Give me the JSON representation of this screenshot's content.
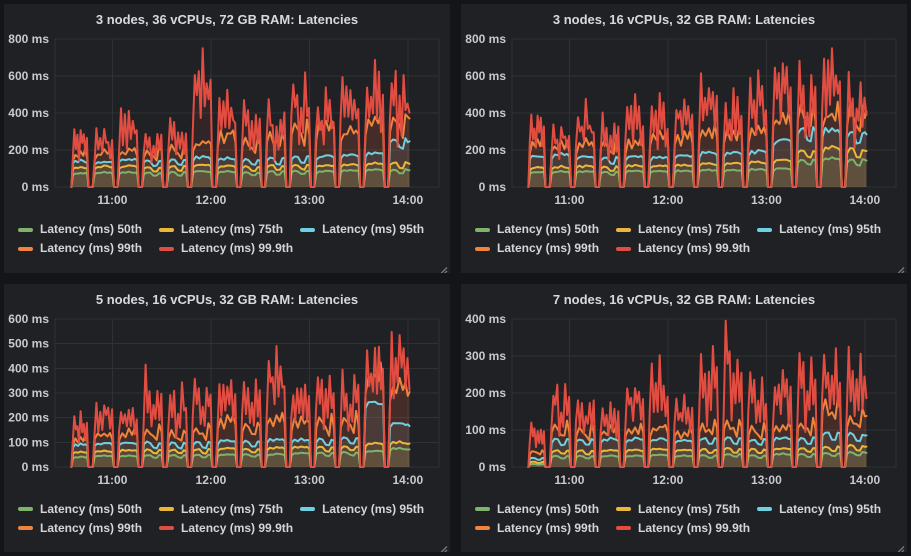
{
  "dashboard": {
    "name": "grafana-latency-dashboard"
  },
  "series_palette": [
    "#7eb26d",
    "#eab839",
    "#6ed0e0",
    "#ef843c",
    "#e24d42"
  ],
  "chart_data": [
    {
      "type": "line",
      "title": "3 nodes, 36 vCPUs, 72 GB RAM: Latencies",
      "ylabel": "",
      "xlabel": "",
      "y_unit": "ms",
      "ylim": [
        0,
        800
      ],
      "y_tick_values": [
        0,
        200,
        400,
        600,
        800
      ],
      "y_tick_labels": [
        "0 ms",
        "200 ms",
        "400 ms",
        "600 ms",
        "800 ms"
      ],
      "x_ticks": [
        "11:00",
        "12:00",
        "13:00",
        "14:00"
      ],
      "x_range": [
        "10:25",
        "14:19"
      ],
      "burst_duration_min": 13,
      "burst_starts": [
        "10:33",
        "10:48",
        "11:03",
        "11:18",
        "11:33",
        "11:48",
        "12:03",
        "12:18",
        "12:33",
        "12:48",
        "13:03",
        "13:18",
        "13:33",
        "13:48"
      ],
      "series": [
        {
          "name": "Latency (ms) 50th",
          "color": "#7eb26d",
          "values": [
            75,
            78,
            80,
            78,
            80,
            85,
            82,
            80,
            85,
            88,
            85,
            88,
            92,
            95
          ]
        },
        {
          "name": "Latency (ms) 75th",
          "color": "#eab839",
          "values": [
            105,
            110,
            112,
            108,
            112,
            118,
            115,
            112,
            118,
            122,
            118,
            122,
            128,
            132
          ]
        },
        {
          "name": "Latency (ms) 95th",
          "color": "#6ed0e0",
          "values": [
            140,
            135,
            150,
            145,
            150,
            160,
            155,
            150,
            160,
            170,
            165,
            170,
            185,
            260
          ]
        },
        {
          "name": "Latency (ms) 99th",
          "color": "#ef843c",
          "values": [
            185,
            190,
            205,
            200,
            215,
            240,
            290,
            250,
            285,
            335,
            340,
            300,
            350,
            390
          ]
        },
        {
          "name": "Latency (ms) 99.9th",
          "color": "#e24d42",
          "values": [
            310,
            300,
            430,
            335,
            380,
            680,
            520,
            485,
            450,
            630,
            490,
            590,
            640,
            670
          ]
        }
      ]
    },
    {
      "type": "line",
      "title": "3 nodes, 16 vCPUs, 32 GB RAM: Latencies",
      "ylabel": "",
      "xlabel": "",
      "y_unit": "ms",
      "ylim": [
        0,
        800
      ],
      "y_tick_values": [
        0,
        200,
        400,
        600,
        800
      ],
      "y_tick_labels": [
        "0 ms",
        "200 ms",
        "400 ms",
        "600 ms",
        "800 ms"
      ],
      "x_ticks": [
        "11:00",
        "12:00",
        "13:00",
        "14:00"
      ],
      "x_range": [
        "10:25",
        "14:19"
      ],
      "burst_duration_min": 13,
      "burst_starts": [
        "10:33",
        "10:48",
        "11:03",
        "11:18",
        "11:33",
        "11:48",
        "12:03",
        "12:18",
        "12:33",
        "12:48",
        "13:03",
        "13:18",
        "13:33",
        "13:48"
      ],
      "series": [
        {
          "name": "Latency (ms) 50th",
          "color": "#7eb26d",
          "values": [
            80,
            82,
            84,
            82,
            86,
            86,
            88,
            90,
            92,
            95,
            100,
            150,
            155,
            150
          ]
        },
        {
          "name": "Latency (ms) 75th",
          "color": "#eab839",
          "values": [
            105,
            108,
            112,
            110,
            115,
            115,
            118,
            125,
            128,
            135,
            145,
            200,
            210,
            205
          ]
        },
        {
          "name": "Latency (ms) 95th",
          "color": "#6ed0e0",
          "values": [
            165,
            175,
            165,
            160,
            165,
            160,
            170,
            185,
            185,
            190,
            250,
            320,
            310,
            300
          ]
        },
        {
          "name": "Latency (ms) 99th",
          "color": "#ef843c",
          "values": [
            230,
            230,
            240,
            240,
            245,
            270,
            275,
            300,
            290,
            295,
            380,
            430,
            400,
            430
          ]
        },
        {
          "name": "Latency (ms) 99.9th",
          "color": "#e24d42",
          "values": [
            390,
            350,
            430,
            400,
            470,
            460,
            500,
            600,
            490,
            580,
            660,
            640,
            750,
            650
          ]
        }
      ]
    },
    {
      "type": "line",
      "title": "5 nodes, 16 vCPUs, 32 GB RAM: Latencies",
      "ylabel": "",
      "xlabel": "",
      "y_unit": "ms",
      "ylim": [
        0,
        600
      ],
      "y_tick_values": [
        0,
        100,
        200,
        300,
        400,
        500,
        600
      ],
      "y_tick_labels": [
        "0 ms",
        "100 ms",
        "200 ms",
        "300 ms",
        "400 ms",
        "500 ms",
        "600 ms"
      ],
      "x_ticks": [
        "11:00",
        "12:00",
        "13:00",
        "14:00"
      ],
      "x_range": [
        "10:25",
        "14:19"
      ],
      "burst_duration_min": 13,
      "burst_starts": [
        "10:33",
        "10:48",
        "11:03",
        "11:18",
        "11:33",
        "11:48",
        "12:03",
        "12:18",
        "12:33",
        "12:48",
        "13:03",
        "13:18",
        "13:33",
        "13:48"
      ],
      "series": [
        {
          "name": "Latency (ms) 50th",
          "color": "#7eb26d",
          "values": [
            40,
            45,
            45,
            48,
            48,
            50,
            50,
            52,
            52,
            55,
            58,
            60,
            65,
            75
          ]
        },
        {
          "name": "Latency (ms) 75th",
          "color": "#eab839",
          "values": [
            60,
            65,
            68,
            70,
            70,
            72,
            75,
            75,
            78,
            80,
            82,
            85,
            95,
            100
          ]
        },
        {
          "name": "Latency (ms) 95th",
          "color": "#6ed0e0",
          "values": [
            90,
            95,
            98,
            100,
            98,
            100,
            105,
            105,
            110,
            110,
            115,
            120,
            260,
            175
          ]
        },
        {
          "name": "Latency (ms) 99th",
          "color": "#ef843c",
          "values": [
            120,
            135,
            140,
            150,
            145,
            160,
            185,
            170,
            195,
            185,
            190,
            200,
            370,
            320
          ]
        },
        {
          "name": "Latency (ms) 99.9th",
          "color": "#e24d42",
          "values": [
            220,
            265,
            255,
            405,
            345,
            380,
            360,
            390,
            465,
            350,
            410,
            380,
            505,
            520
          ]
        }
      ]
    },
    {
      "type": "line",
      "title": "7 nodes, 16 vCPUs, 32 GB RAM: Latencies",
      "ylabel": "",
      "xlabel": "",
      "y_unit": "ms",
      "ylim": [
        0,
        400
      ],
      "y_tick_values": [
        0,
        100,
        200,
        300,
        400
      ],
      "y_tick_labels": [
        "0 ms",
        "100 ms",
        "200 ms",
        "300 ms",
        "400 ms"
      ],
      "x_ticks": [
        "11:00",
        "12:00",
        "13:00",
        "14:00"
      ],
      "x_range": [
        "10:25",
        "14:19"
      ],
      "burst_duration_min": 13,
      "burst_starts": [
        "10:33",
        "10:48",
        "11:03",
        "11:18",
        "11:33",
        "11:48",
        "12:03",
        "12:18",
        "12:33",
        "12:48",
        "13:03",
        "13:18",
        "13:33",
        "13:48"
      ],
      "series": [
        {
          "name": "Latency (ms) 50th",
          "color": "#7eb26d",
          "values": [
            8,
            30,
            30,
            30,
            30,
            32,
            30,
            32,
            35,
            32,
            35,
            35,
            38,
            40
          ]
        },
        {
          "name": "Latency (ms) 75th",
          "color": "#eab839",
          "values": [
            14,
            45,
            45,
            45,
            45,
            48,
            45,
            48,
            50,
            48,
            50,
            52,
            55,
            58
          ]
        },
        {
          "name": "Latency (ms) 95th",
          "color": "#6ed0e0",
          "values": [
            25,
            75,
            75,
            75,
            75,
            75,
            70,
            78,
            80,
            75,
            78,
            80,
            95,
            90
          ]
        },
        {
          "name": "Latency (ms) 99th",
          "color": "#ef843c",
          "values": [
            45,
            110,
            105,
            100,
            105,
            110,
            95,
            115,
            120,
            110,
            115,
            120,
            170,
            145
          ]
        },
        {
          "name": "Latency (ms) 99.9th",
          "color": "#e24d42",
          "values": [
            130,
            230,
            210,
            170,
            230,
            275,
            195,
            345,
            380,
            255,
            250,
            300,
            340,
            310
          ]
        }
      ]
    }
  ]
}
